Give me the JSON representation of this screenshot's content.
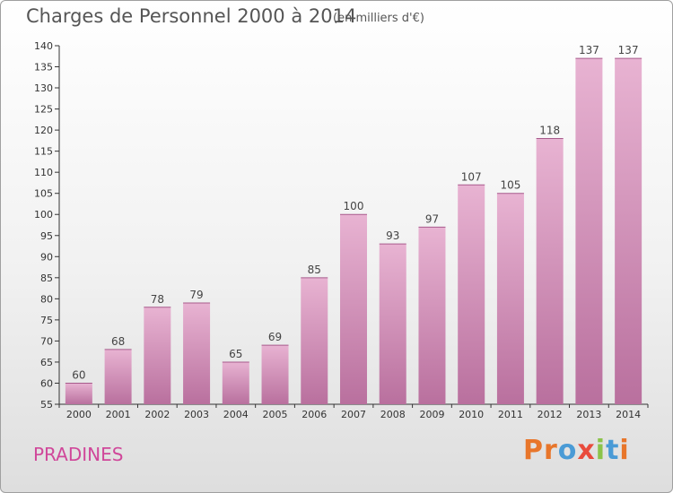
{
  "page": {
    "title": "Charges de Personnel 2000 à 2014",
    "subtitle": "(en milliers d'€)",
    "location": "PRADINES",
    "brand": "Proxiti"
  },
  "chart_data": {
    "type": "bar",
    "title": "Charges de Personnel 2000 à 2014",
    "subtitle": "(en milliers d'€)",
    "xlabel": "",
    "ylabel": "",
    "categories": [
      "2000",
      "2001",
      "2002",
      "2003",
      "2004",
      "2005",
      "2006",
      "2007",
      "2008",
      "2009",
      "2010",
      "2011",
      "2012",
      "2013",
      "2014"
    ],
    "values": [
      60,
      68,
      78,
      79,
      65,
      69,
      85,
      100,
      93,
      97,
      107,
      105,
      118,
      137,
      137
    ],
    "ylim": [
      55,
      140
    ],
    "yticks": [
      55,
      60,
      65,
      70,
      75,
      80,
      85,
      90,
      95,
      100,
      105,
      110,
      115,
      120,
      125,
      130,
      135,
      140
    ],
    "grid": false,
    "bar_color": "#d9a0c4",
    "bar_color_top": "#e8b3d2",
    "bar_color_bottom": "#b9709e"
  },
  "colors": {
    "title": "#555555",
    "location": "#d0479a",
    "axis": "#333333",
    "brand": [
      "#e8762b",
      "#e8762b",
      "#4a9bd6",
      "#e94b3c",
      "#8bc34a",
      "#4a9bd6",
      "#e8762b"
    ]
  }
}
